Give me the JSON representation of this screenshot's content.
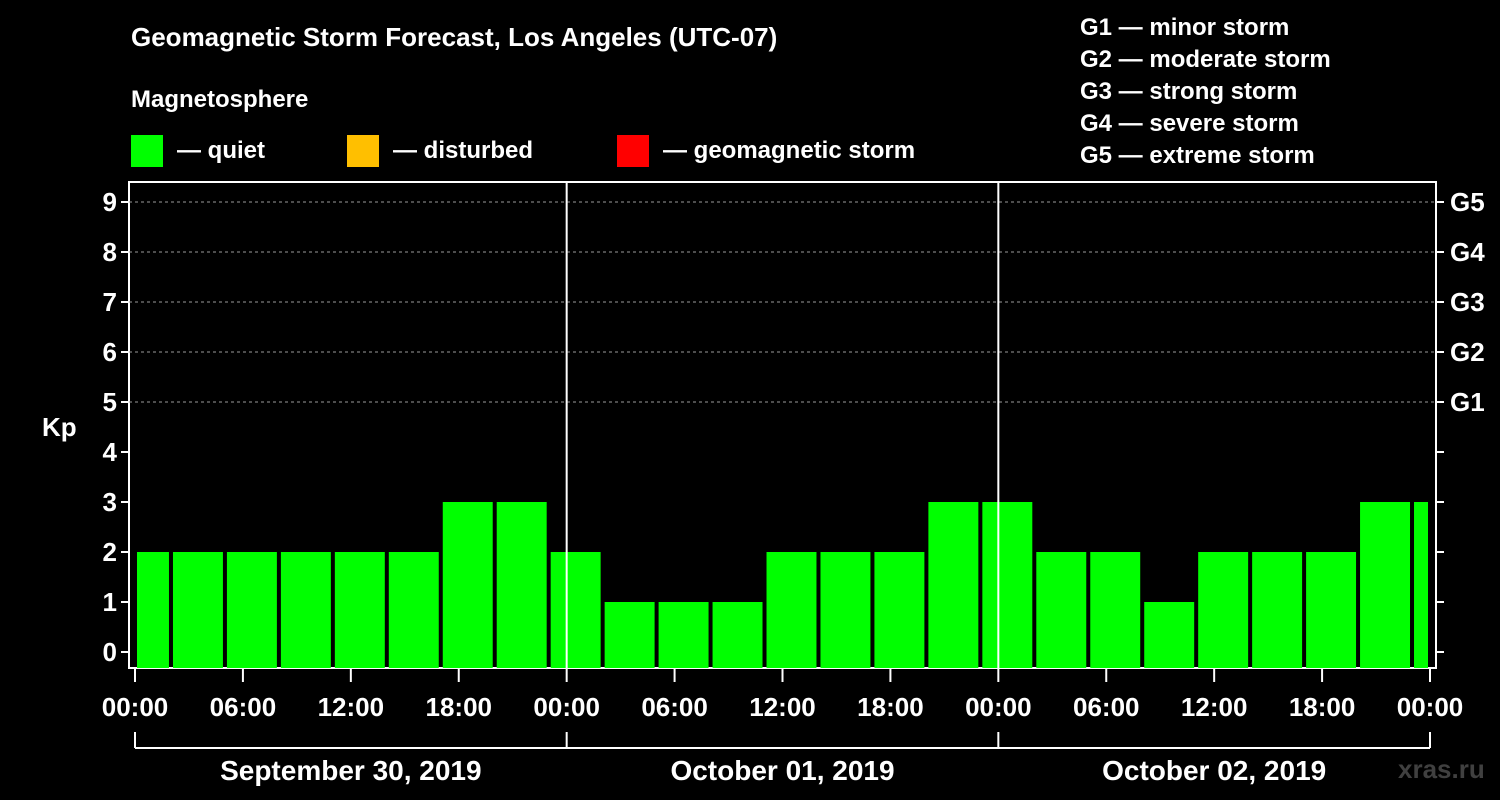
{
  "title": "Geomagnetic Storm Forecast, Los Angeles (UTC-07)",
  "magnetosphere_label": "Magnetosphere",
  "legend": [
    {
      "label": "— quiet",
      "color": "#00ff00"
    },
    {
      "label": "— disturbed",
      "color": "#ffbf00"
    },
    {
      "label": "— geomagnetic storm",
      "color": "#ff0000"
    }
  ],
  "storm_scale": [
    "G1 — minor storm",
    "G2 — moderate storm",
    "G3 — strong storm",
    "G4 — severe storm",
    "G5 — extreme storm"
  ],
  "y_axis_label": "Kp",
  "watermark": "xras.ru",
  "chart_data": {
    "type": "bar",
    "title": "Geomagnetic Storm Forecast, Los Angeles (UTC-07)",
    "ylabel": "Kp",
    "ylim": [
      0,
      9
    ],
    "yticks": [
      "0",
      "1",
      "2",
      "3",
      "4",
      "5",
      "6",
      "7",
      "8",
      "9"
    ],
    "right_ticks": [
      {
        "kp": 5,
        "label": "G1"
      },
      {
        "kp": 6,
        "label": "G2"
      },
      {
        "kp": 7,
        "label": "G3"
      },
      {
        "kp": 8,
        "label": "G4"
      },
      {
        "kp": 9,
        "label": "G5"
      }
    ],
    "x_range_hours": [
      0,
      72
    ],
    "x_tick_labels": [
      "00:00",
      "06:00",
      "12:00",
      "18:00",
      "00:00",
      "06:00",
      "12:00",
      "18:00",
      "00:00",
      "06:00",
      "12:00",
      "18:00",
      "00:00"
    ],
    "day_labels": [
      "September 30, 2019",
      "October 01, 2019",
      "October 02, 2019"
    ],
    "grid": "horizontal dashed at Kp 5–9",
    "bars": [
      {
        "start_hour": 0,
        "end_hour": 2,
        "kp": 2
      },
      {
        "start_hour": 2,
        "end_hour": 5,
        "kp": 2
      },
      {
        "start_hour": 5,
        "end_hour": 8,
        "kp": 2
      },
      {
        "start_hour": 8,
        "end_hour": 11,
        "kp": 2
      },
      {
        "start_hour": 11,
        "end_hour": 14,
        "kp": 2
      },
      {
        "start_hour": 14,
        "end_hour": 17,
        "kp": 2
      },
      {
        "start_hour": 17,
        "end_hour": 20,
        "kp": 3
      },
      {
        "start_hour": 20,
        "end_hour": 23,
        "kp": 3
      },
      {
        "start_hour": 23,
        "end_hour": 26,
        "kp": 2
      },
      {
        "start_hour": 26,
        "end_hour": 29,
        "kp": 1
      },
      {
        "start_hour": 29,
        "end_hour": 32,
        "kp": 1
      },
      {
        "start_hour": 32,
        "end_hour": 35,
        "kp": 1
      },
      {
        "start_hour": 35,
        "end_hour": 38,
        "kp": 2
      },
      {
        "start_hour": 38,
        "end_hour": 41,
        "kp": 2
      },
      {
        "start_hour": 41,
        "end_hour": 44,
        "kp": 2
      },
      {
        "start_hour": 44,
        "end_hour": 47,
        "kp": 3
      },
      {
        "start_hour": 47,
        "end_hour": 50,
        "kp": 3
      },
      {
        "start_hour": 50,
        "end_hour": 53,
        "kp": 2
      },
      {
        "start_hour": 53,
        "end_hour": 56,
        "kp": 2
      },
      {
        "start_hour": 56,
        "end_hour": 59,
        "kp": 1
      },
      {
        "start_hour": 59,
        "end_hour": 62,
        "kp": 2
      },
      {
        "start_hour": 62,
        "end_hour": 65,
        "kp": 2
      },
      {
        "start_hour": 65,
        "end_hour": 68,
        "kp": 2
      },
      {
        "start_hour": 68,
        "end_hour": 71,
        "kp": 3
      },
      {
        "start_hour": 71,
        "end_hour": 72,
        "kp": 3
      }
    ],
    "bar_color": "#00ff00"
  }
}
